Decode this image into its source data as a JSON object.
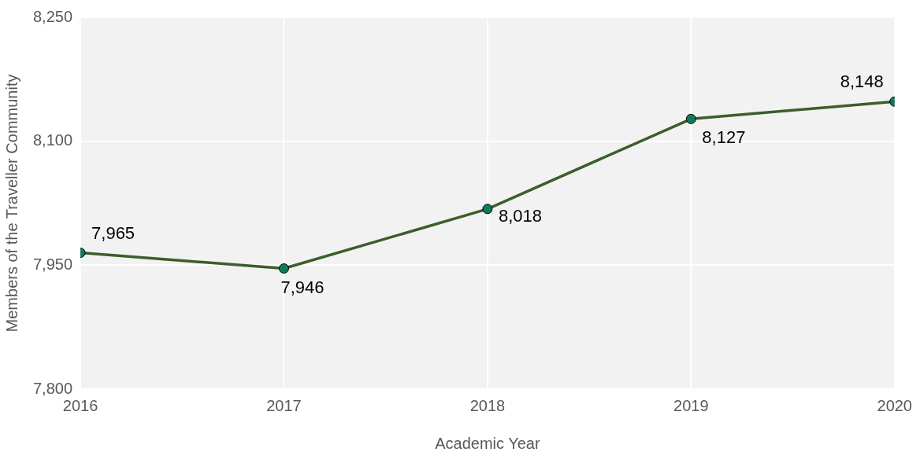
{
  "chart_data": {
    "type": "line",
    "xlabel": "Academic Year",
    "ylabel": "Members of the Traveller Community",
    "x": [
      2016,
      2017,
      2018,
      2019,
      2020
    ],
    "series": [
      {
        "color": "#3b5e2b",
        "values": [
          7965,
          7946,
          8018,
          8127,
          8148
        ],
        "value_labels": [
          "7,965",
          "7,946",
          "8,018",
          "8,127",
          "8,148"
        ]
      }
    ],
    "xlim": [
      2016,
      2020
    ],
    "xticks": [
      {
        "value": 2016,
        "label": "2016"
      },
      {
        "value": 2017,
        "label": "2017"
      },
      {
        "value": 2018,
        "label": "2018"
      },
      {
        "value": 2019,
        "label": "2019"
      },
      {
        "value": 2020,
        "label": "2020"
      }
    ],
    "ylim": [
      7800,
      8250
    ],
    "yticks": [
      {
        "value": 7800,
        "label": "7,800"
      },
      {
        "value": 7950,
        "label": "7,950"
      },
      {
        "value": 8100,
        "label": "8,100"
      },
      {
        "value": 8250,
        "label": "8,250"
      }
    ],
    "grid": true,
    "legend": false,
    "marker": "circle",
    "line_style": "solid"
  }
}
